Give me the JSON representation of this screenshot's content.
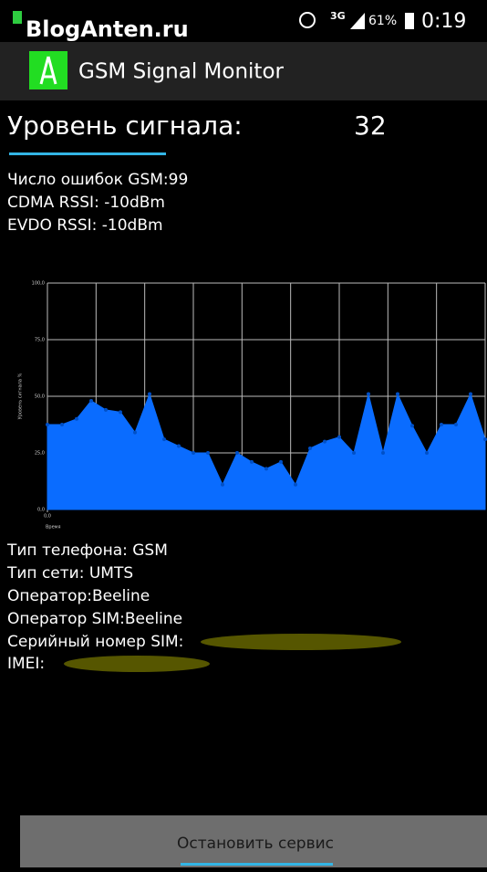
{
  "status_bar": {
    "watermark": "BlogAnten.ru",
    "network": "3G",
    "battery": "61%",
    "time": "0:19"
  },
  "app_bar": {
    "title": "GSM Signal Monitor"
  },
  "signal": {
    "label": "Уровень сигнала:",
    "value": 32
  },
  "info_top": [
    "Число ошибок GSM:99",
    "CDMA RSSI: -10dBm",
    "EVDO RSSI: -10dBm"
  ],
  "chart_data": {
    "type": "area",
    "y_label": "Уровень сигнала %",
    "x_label": "Время",
    "values": [
      37.5,
      37.5,
      40,
      48,
      44,
      43,
      34,
      51,
      31,
      28,
      25,
      25,
      11,
      25,
      21,
      18,
      21,
      11,
      27,
      30,
      32,
      25,
      51,
      25,
      51,
      37,
      25,
      37.5,
      37.5,
      51,
      31
    ],
    "color": "#0a6cff",
    "marker_color": "#0050c8",
    "xlim": [
      0,
      30
    ],
    "xticks": [
      {
        "value": 0,
        "label": "0,0"
      }
    ],
    "ylim": [
      0,
      100
    ],
    "yticks": [
      {
        "value": 0,
        "label": "0,0"
      },
      {
        "value": 25,
        "label": "25,0"
      },
      {
        "value": 50,
        "label": "50,0"
      },
      {
        "value": 75,
        "label": "75,0"
      },
      {
        "value": 100,
        "label": "100,0"
      }
    ],
    "grid": true
  },
  "info_bottom": [
    "Тип телефона: GSM",
    "Тип сети: UMTS",
    "Оператор:Beeline",
    "Оператор SIM:Beeline",
    "Серийный номер SIM:",
    "IMEI:"
  ],
  "button": {
    "label": "Остановить сервис"
  }
}
